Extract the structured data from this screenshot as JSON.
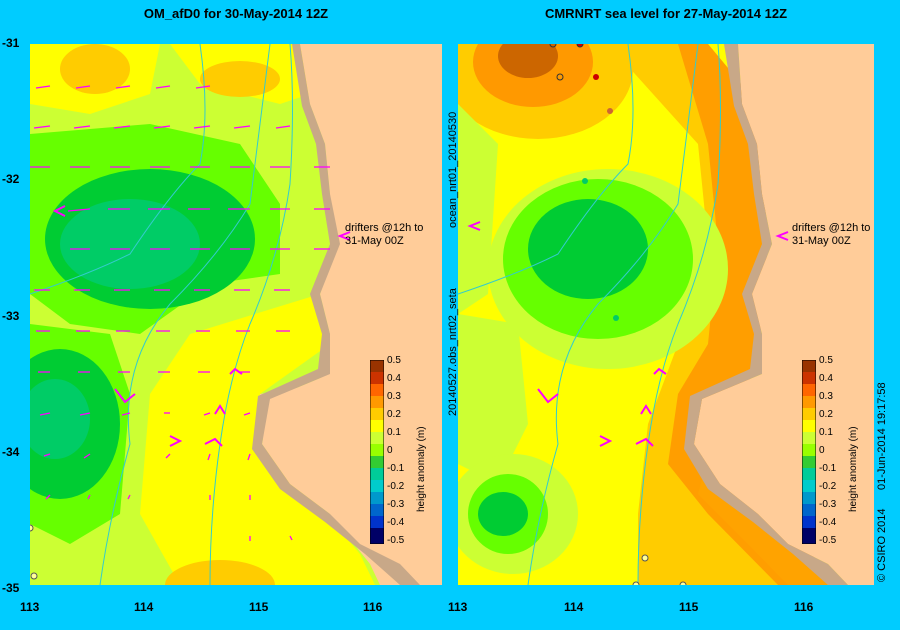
{
  "left_panel": {
    "title": "OM_afD0 for 30-May-2014 12Z",
    "drifter_note_line1": "drifters @12h to",
    "drifter_note_line2": "31-May 00Z"
  },
  "right_panel": {
    "title": "CMRNRT sea level  for 27-May-2014 12Z",
    "drifter_note_line1": "drifters @12h to",
    "drifter_note_line2": "31-May 00Z",
    "side_label_top": "ocean_nrt01_20140530",
    "side_label_bottom": "20140527.obs_nrt02_seta"
  },
  "axes": {
    "y_ticks": [
      "-31",
      "-32",
      "-33",
      "-34",
      "-35"
    ],
    "x_ticks_left": [
      "113",
      "114",
      "115",
      "116"
    ],
    "x_ticks_right": [
      "113",
      "114",
      "115",
      "116"
    ]
  },
  "colorbar": {
    "label": "height anomaly (m)",
    "ticks": [
      "0.5",
      "0.4",
      "0.3",
      "0.2",
      "0.1",
      "0",
      "-0.1",
      "-0.2",
      "-0.3",
      "-0.4",
      "-0.5"
    ],
    "colors": [
      "#993300",
      "#cc3300",
      "#ff6600",
      "#ff9900",
      "#ffcc00",
      "#ffff00",
      "#ccff33",
      "#66ff00",
      "#00cc33",
      "#00cc99",
      "#00cccc",
      "#0099cc",
      "#0066cc",
      "#0033cc",
      "#000099",
      "#000066"
    ]
  },
  "footer": {
    "copyright": "© CSIRO 2014",
    "timestamp": "01-Jun-2014 19:17:58"
  }
}
